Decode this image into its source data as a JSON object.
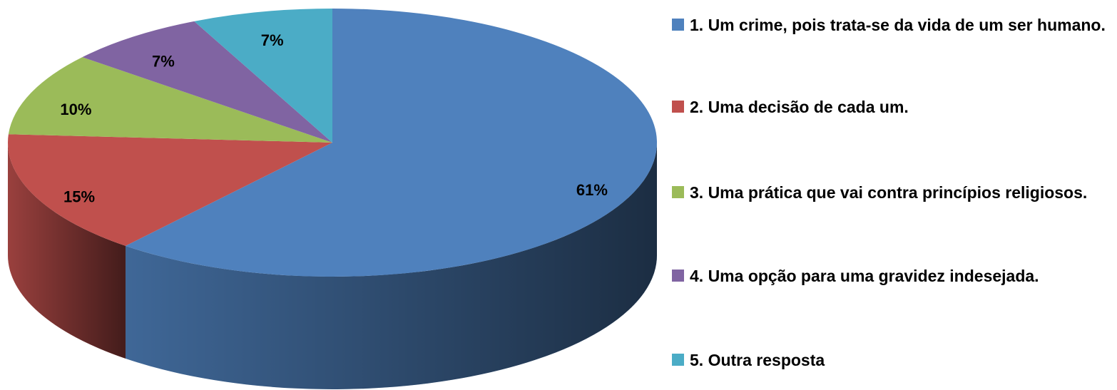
{
  "chart_data": {
    "type": "pie",
    "chart3d": true,
    "categories": [
      "1. Um crime, pois trata-se da vida de um ser humano.",
      "2. Uma decisão de cada um.",
      "3. Uma prática que vai contra princípios religiosos.",
      "4. Uma opção para uma gravidez indesejada.",
      "5. Outra resposta"
    ],
    "values": [
      61,
      15,
      10,
      7,
      7
    ],
    "value_labels": [
      "61%",
      "15%",
      "10%",
      "7%",
      "7%"
    ],
    "colors": [
      "#4f81bd",
      "#c0504d",
      "#9bbb59",
      "#8064a2",
      "#4bacc6"
    ],
    "legend": "right"
  }
}
